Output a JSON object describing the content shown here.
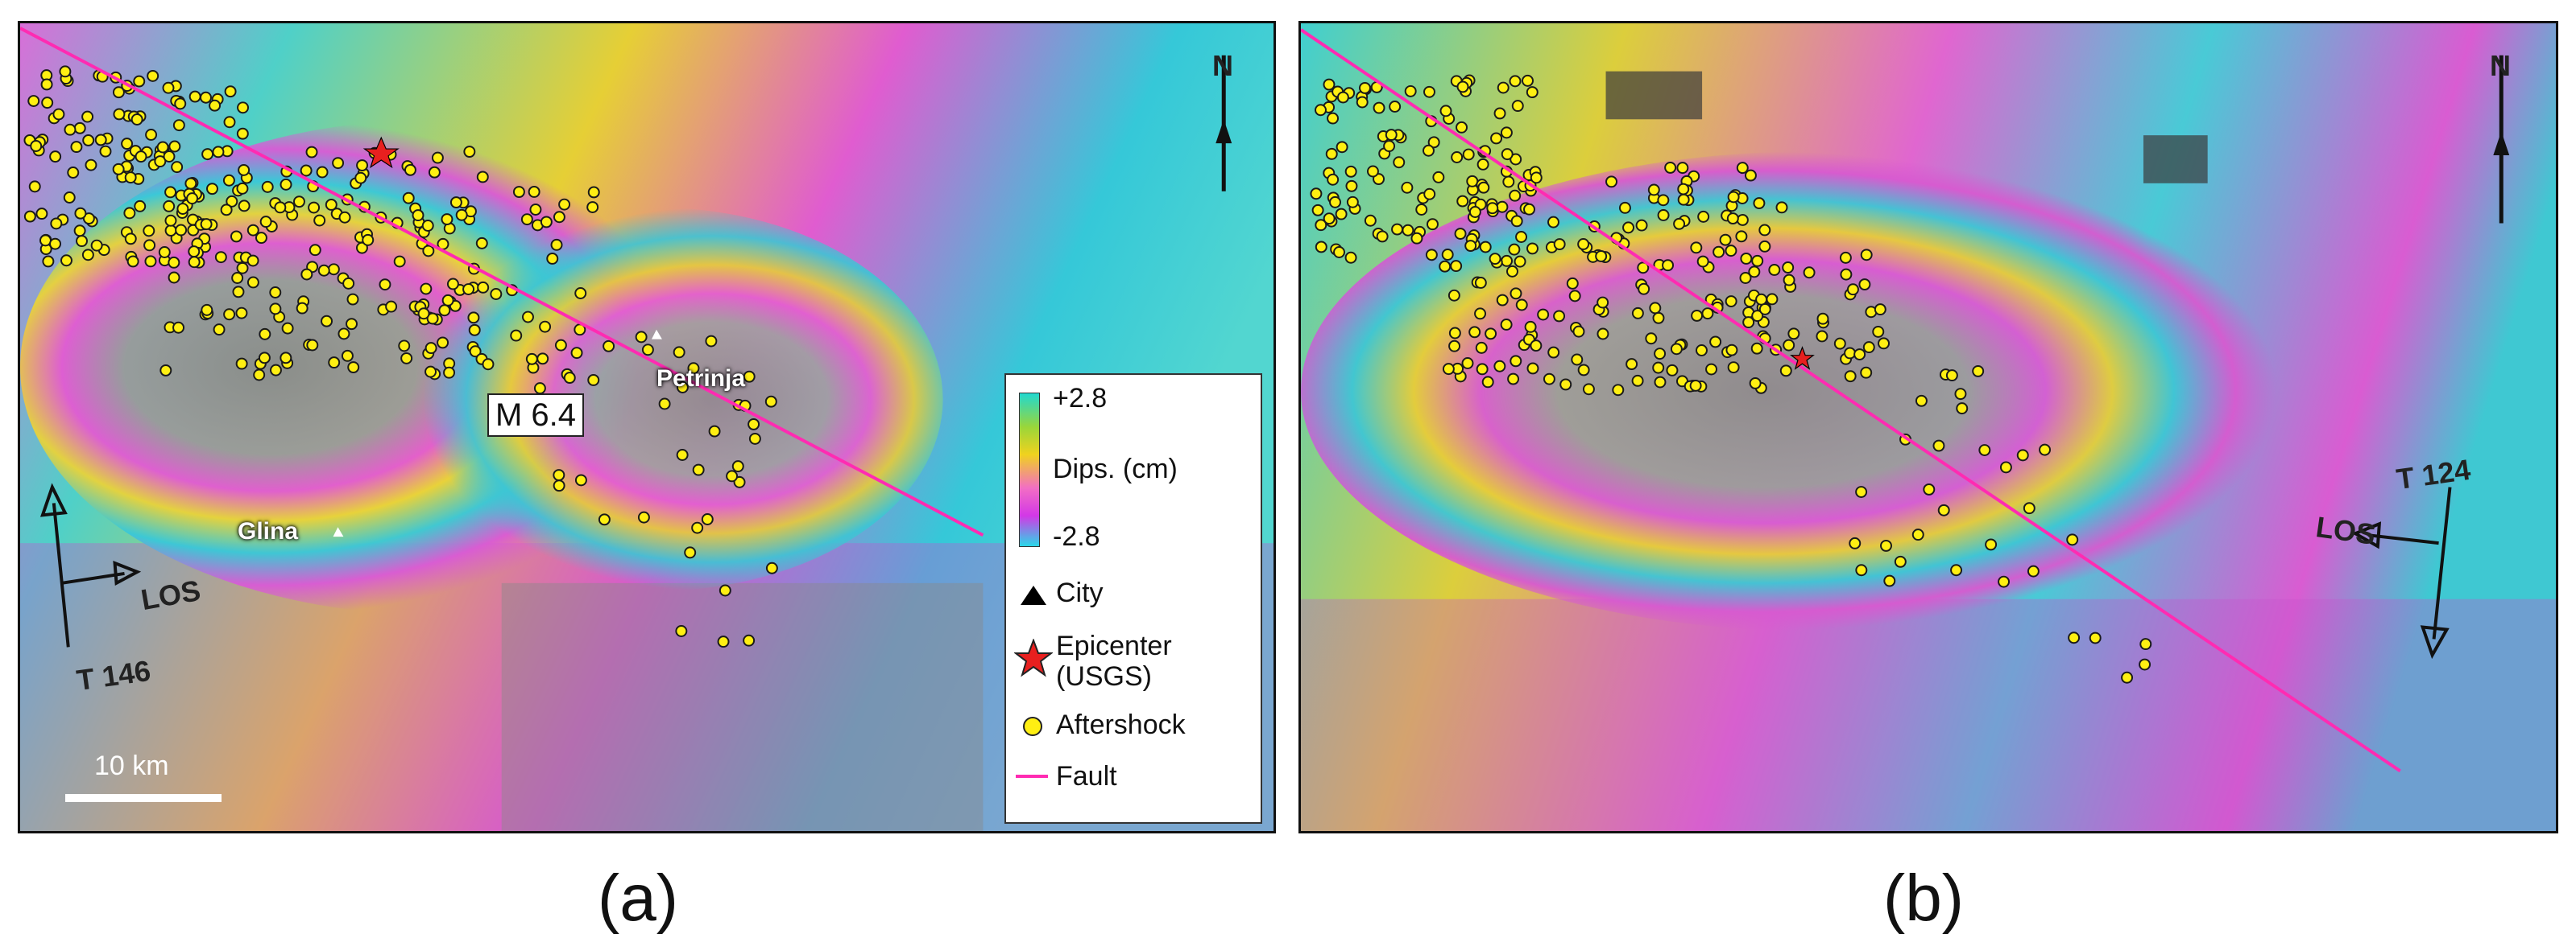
{
  "panel_a": {
    "caption": "(a)",
    "scale_label": "10 km",
    "track_label": "T 146",
    "los_label": "LOS",
    "magnitude_label": "M 6.4",
    "north_label": "N",
    "cities": [
      {
        "name": "Petrinja"
      },
      {
        "name": "Glina"
      }
    ],
    "legend": {
      "colorbar_max": "+2.8",
      "colorbar_title": "Dips. (cm)",
      "colorbar_min": "-2.8",
      "items": [
        {
          "label": "City",
          "symbol": "triangle",
          "color": "#000000"
        },
        {
          "label": "Epicenter",
          "label2": "(USGS)",
          "symbol": "star",
          "color": "#e8201f"
        },
        {
          "label": "Aftershock",
          "symbol": "circle",
          "color": "#ffef12"
        },
        {
          "label": "Fault",
          "symbol": "line",
          "color": "#ff2bb2"
        }
      ]
    }
  },
  "panel_b": {
    "caption": "(b)",
    "track_label": "T 124",
    "los_label": "LOS",
    "north_label": "N"
  },
  "colors": {
    "fault": "#ff2bb2",
    "aftershock_fill": "#ffef12",
    "epicenter": "#e8201f",
    "fringe_cyan": "#21d8cf",
    "fringe_yellow": "#f0d21e",
    "fringe_magenta": "#e04fd8"
  }
}
